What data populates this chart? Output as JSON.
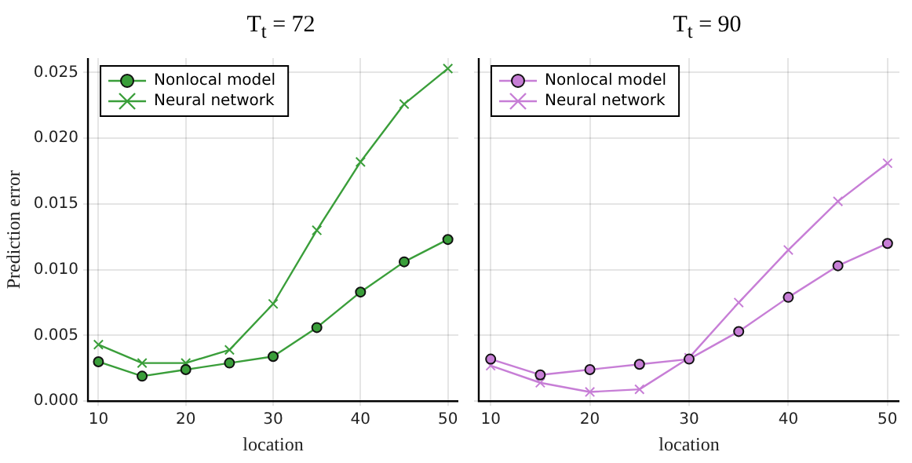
{
  "chart_data": [
    {
      "type": "line",
      "title": "T$_{t}$ = 72",
      "xlabel": "location",
      "ylabel": "Prediction error",
      "x": [
        10,
        15,
        20,
        25,
        30,
        35,
        40,
        45,
        50
      ],
      "series": [
        {
          "name": "Nonlocal model",
          "color": "#3a9e3a",
          "marker": "circle",
          "values": [
            0.003,
            0.0019,
            0.0024,
            0.0029,
            0.0034,
            0.0056,
            0.0083,
            0.0106,
            0.0123
          ]
        },
        {
          "name": "Neural network",
          "color": "#3a9e3a",
          "marker": "cross",
          "values": [
            0.0043,
            0.0029,
            0.0029,
            0.0039,
            0.0074,
            0.013,
            0.0182,
            0.0226,
            0.0253
          ]
        }
      ],
      "xlim": [
        8.8,
        51.2
      ],
      "xticks": [
        10,
        20,
        30,
        40,
        50
      ],
      "ylim": [
        0,
        0.0261
      ],
      "yticks": [
        {
          "value": 0,
          "label": "0.000"
        },
        {
          "value": 0.005,
          "label": "0.005"
        },
        {
          "value": 0.01,
          "label": "0.010"
        },
        {
          "value": 0.015,
          "label": "0.015"
        },
        {
          "value": 0.02,
          "label": "0.020"
        },
        {
          "value": 0.025,
          "label": "0.025"
        }
      ],
      "grid": true,
      "legend": "top left"
    },
    {
      "type": "line",
      "title": "T$_{t}$ = 90",
      "xlabel": "location",
      "x": [
        10,
        15,
        20,
        25,
        30,
        35,
        40,
        45,
        50
      ],
      "series": [
        {
          "name": "Nonlocal model",
          "color": "#c77ed6",
          "marker": "circle",
          "values": [
            0.0032,
            0.002,
            0.0024,
            0.0028,
            0.0032,
            0.0053,
            0.0079,
            0.0103,
            0.012
          ]
        },
        {
          "name": "Neural network",
          "color": "#c77ed6",
          "marker": "cross",
          "values": [
            0.0027,
            0.0014,
            0.0007,
            0.0009,
            0.0033,
            0.0075,
            0.0115,
            0.0152,
            0.0181
          ]
        }
      ],
      "xlim": [
        8.8,
        51.2
      ],
      "xticks": [
        10,
        20,
        30,
        40,
        50
      ],
      "ylim": [
        0,
        0.0261
      ],
      "yticks": [
        0,
        0.005,
        0.01,
        0.015,
        0.02,
        0.025
      ],
      "grid": true,
      "legend": "top left",
      "tick_labels": "x"
    }
  ]
}
